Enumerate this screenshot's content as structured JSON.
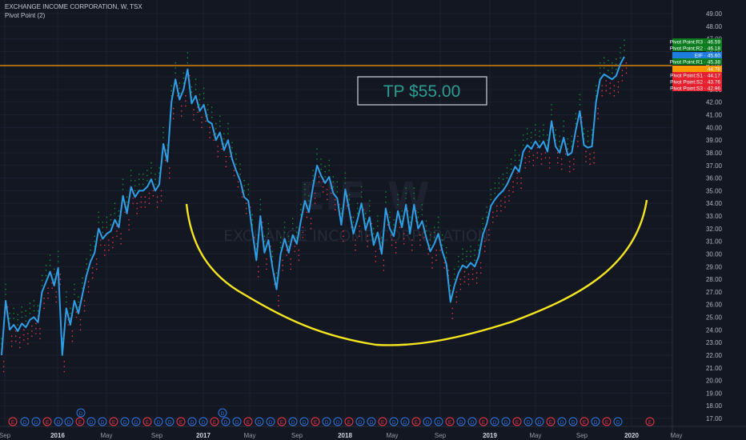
{
  "header": {
    "symbol_line": "EXCHANGE INCOME CORPORATION, W, TSX",
    "indicator_line": "Pivot Point (2)"
  },
  "watermark": {
    "ticker": "EIF, W",
    "name": "EXCHANGE INCOME CORPORATION"
  },
  "annotation": {
    "tp_label": "TP $55.00"
  },
  "colors": {
    "background": "#131722",
    "price_line": "#2e9ee6",
    "resistance": "#0b9a2e",
    "support": "#f23645",
    "horizontal_line": "#ff9800",
    "cup_curve": "#f5e51e",
    "tp_box": "#2a9d8f"
  },
  "chart_data": {
    "type": "line",
    "title": "EXCHANGE INCOME CORPORATION, W, TSX",
    "ylim": [
      16.5,
      49.6
    ],
    "y_ticks": [
      "49.00",
      "48.00",
      "47.00",
      "46.00",
      "45.00",
      "44.00",
      "43.00",
      "42.00",
      "41.00",
      "40.00",
      "39.00",
      "38.00",
      "37.00",
      "36.00",
      "35.00",
      "34.00",
      "33.00",
      "32.00",
      "31.00",
      "30.00",
      "29.00",
      "28.00",
      "27.00",
      "26.00",
      "25.00",
      "24.00",
      "23.00",
      "22.00",
      "21.00",
      "20.00",
      "19.00",
      "18.00",
      "17.00"
    ],
    "x_ticks": [
      "Sep",
      "2016",
      "May",
      "Sep",
      "2017",
      "May",
      "Sep",
      "2018",
      "May",
      "Sep",
      "2019",
      "May",
      "Sep",
      "2020",
      "May"
    ],
    "x_ticks_bold": [
      "2016",
      "2017",
      "2018",
      "2019",
      "2020"
    ],
    "series": [
      {
        "values": [
          22.0,
          26.3,
          24.0,
          24.4,
          23.9,
          24.5,
          24.2,
          24.8,
          25.0,
          24.6,
          27.0,
          27.8,
          28.6,
          27.5,
          28.9,
          22.0,
          25.7,
          24.4,
          26.3,
          25.3,
          26.8,
          28.3,
          29.4,
          30.1,
          32.0,
          31.2,
          31.6,
          31.8,
          32.7,
          32.1,
          34.6,
          33.2,
          35.3,
          34.5,
          35.0,
          35.0,
          35.3,
          35.9,
          35.0,
          35.5,
          38.7,
          37.3,
          42.0,
          43.8,
          42.2,
          43.0,
          44.6,
          41.9,
          42.5,
          41.3,
          41.8,
          40.5,
          40.3,
          39.0,
          39.6,
          38.2,
          39.0,
          37.5,
          36.6,
          35.8,
          34.5,
          34.2,
          31.8,
          29.5,
          33.0,
          30.1,
          31.1,
          28.9,
          27.2,
          30.0,
          31.2,
          30.1,
          31.5,
          30.8,
          32.6,
          34.2,
          33.3,
          35.3,
          37.0,
          36.2,
          35.6,
          36.1,
          34.8,
          34.4,
          32.3,
          35.1,
          33.4,
          31.6,
          32.7,
          34.0,
          31.9,
          32.9,
          30.7,
          31.7,
          30.0,
          33.6,
          32.0,
          31.4,
          33.4,
          32.1,
          33.9,
          31.6,
          33.9,
          32.0,
          32.6,
          31.3,
          30.2,
          30.8,
          31.6,
          30.2,
          29.2,
          26.2,
          27.5,
          28.5,
          29.1,
          28.9,
          29.3,
          29.0,
          29.8,
          31.5,
          32.4,
          33.8,
          34.3,
          34.7,
          35.0,
          35.5,
          36.2,
          36.9,
          36.5,
          38.1,
          38.6,
          38.3,
          38.9,
          38.4,
          38.9,
          38.1,
          40.5,
          38.5,
          38.0,
          39.2,
          37.8,
          38.0,
          39.8,
          41.3,
          38.6,
          38.4,
          38.5,
          42.0,
          43.8,
          44.2,
          44.0,
          43.8,
          44.1,
          45.0,
          45.6
        ]
      }
    ]
  }
}
